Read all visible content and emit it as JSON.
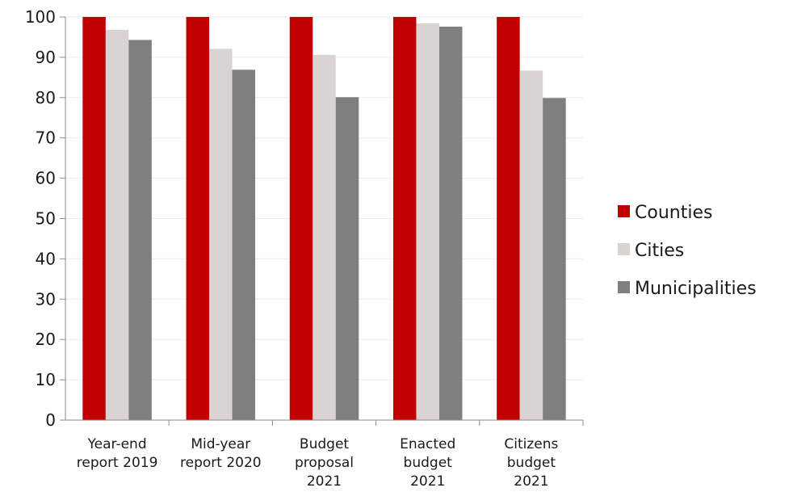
{
  "chart_data": {
    "type": "bar",
    "title": "",
    "xlabel": "",
    "ylabel": "",
    "ylim": [
      0,
      100
    ],
    "yticks": [
      0,
      10,
      20,
      30,
      40,
      50,
      60,
      70,
      80,
      90,
      100
    ],
    "grid": true,
    "legend_position": "right",
    "categories": [
      [
        "Year-end",
        "report 2019"
      ],
      [
        "Mid-year",
        "report 2020"
      ],
      [
        "Budget",
        "proposal",
        "2021"
      ],
      [
        "Enacted",
        "budget",
        "2021"
      ],
      [
        "Citizens",
        "budget",
        "2021"
      ]
    ],
    "series": [
      {
        "name": "Counties",
        "color": "#c00000",
        "values": [
          100,
          100,
          100,
          100,
          100
        ]
      },
      {
        "name": "Cities",
        "color": "#d9d4d2",
        "values": [
          96.8,
          92.1,
          90.6,
          98.4,
          86.7
        ]
      },
      {
        "name": "Municipalities",
        "color": "#7f7f7f",
        "values": [
          94.3,
          86.9,
          80.1,
          97.6,
          79.9
        ]
      }
    ]
  }
}
